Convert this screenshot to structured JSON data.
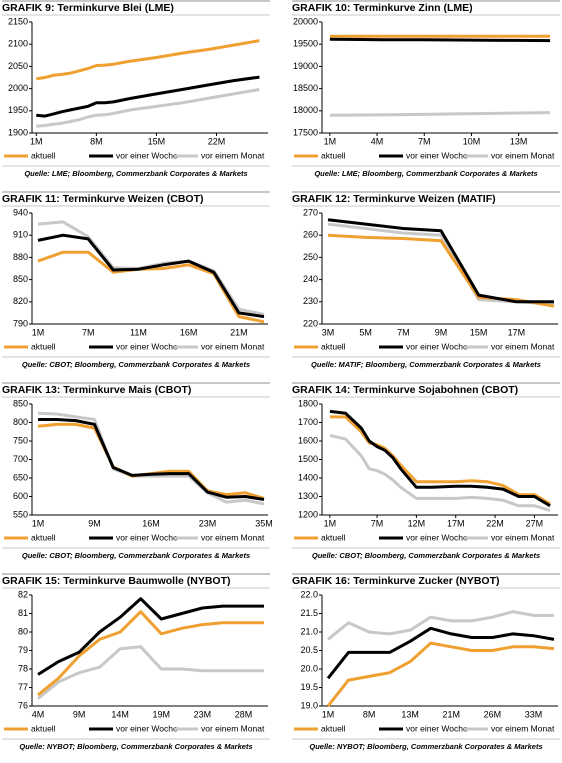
{
  "chart_data": [
    {
      "type": "line",
      "title": "GRAFIK 9: Terminkurve Blei (LME)",
      "source": "Quelle: LME; Bloomberg, Commerzbank Corporates & Markets",
      "x": [
        1,
        2,
        3,
        4,
        5,
        6,
        7,
        8,
        9,
        10,
        12,
        15,
        18,
        21,
        24,
        27
      ],
      "xlim": [
        0.5,
        28
      ],
      "xticks": [
        {
          "value": 1,
          "label": "1M"
        },
        {
          "value": 8,
          "label": "8M"
        },
        {
          "value": 15,
          "label": "15M"
        },
        {
          "value": 22,
          "label": "22M"
        }
      ],
      "ylim": [
        1900,
        2150
      ],
      "yticks": [
        1900,
        1950,
        2000,
        2050,
        2100,
        2150
      ],
      "series": [
        {
          "name": "aktuell",
          "color": "#f0a030",
          "values": [
            2022,
            2025,
            2030,
            2032,
            2035,
            2040,
            2045,
            2052,
            2053,
            2055,
            2062,
            2070,
            2080,
            2088,
            2098,
            2108
          ]
        },
        {
          "name": "vor einer Woche",
          "color": "#000000",
          "values": [
            1940,
            1938,
            1943,
            1948,
            1952,
            1956,
            1960,
            1968,
            1968,
            1970,
            1978,
            1988,
            1998,
            2008,
            2018,
            2026
          ]
        },
        {
          "name": "vor einem Monat",
          "color": "#c8c8c8",
          "values": [
            1915,
            1917,
            1920,
            1922,
            1926,
            1930,
            1936,
            1940,
            1941,
            1944,
            1952,
            1960,
            1968,
            1978,
            1988,
            1998
          ]
        }
      ]
    },
    {
      "type": "line",
      "title": "GRAFIK 10: Terminkurve Zinn (LME)",
      "source": "Quelle: LME; Bloomberg, Commerzbank Corporates & Markets",
      "x": [
        1,
        3,
        5,
        7,
        9,
        11,
        13,
        15
      ],
      "xlim": [
        0.5,
        15.5
      ],
      "xticks": [
        {
          "value": 1,
          "label": "1M"
        },
        {
          "value": 4,
          "label": "4M"
        },
        {
          "value": 7,
          "label": "7M"
        },
        {
          "value": 10,
          "label": "10M"
        },
        {
          "value": 13,
          "label": "13M"
        }
      ],
      "ylim": [
        17500,
        20000
      ],
      "yticks": [
        17500,
        18000,
        18500,
        19000,
        19500,
        20000
      ],
      "series": [
        {
          "name": "aktuell",
          "color": "#f0a030",
          "values": [
            19680,
            19680,
            19680,
            19680,
            19680,
            19680,
            19680,
            19680
          ]
        },
        {
          "name": "vor einer Woche",
          "color": "#000000",
          "values": [
            19610,
            19605,
            19600,
            19598,
            19595,
            19590,
            19585,
            19580
          ]
        },
        {
          "name": "vor einem Monat",
          "color": "#c8c8c8",
          "values": [
            17900,
            17905,
            17910,
            17920,
            17930,
            17940,
            17950,
            17960
          ]
        }
      ]
    },
    {
      "type": "line",
      "title": "GRAFIK 11: Terminkurve Weizen (CBOT)",
      "source": "Quelle: CBOT; Bloomberg, Commerzbank Corporates & Markets",
      "categories": [
        "1M",
        null,
        "7M",
        null,
        "11M",
        null,
        "16M",
        null,
        "21M",
        null
      ],
      "ylim": [
        790,
        940
      ],
      "yticks": [
        790,
        820,
        850,
        880,
        910,
        940
      ],
      "series": [
        {
          "name": "aktuell",
          "color": "#f0a030",
          "values": [
            875,
            887,
            887,
            860,
            864,
            865,
            870,
            858,
            800,
            793
          ]
        },
        {
          "name": "vor einer Woche",
          "color": "#000000",
          "values": [
            903,
            910,
            905,
            863,
            864,
            870,
            875,
            860,
            805,
            800
          ]
        },
        {
          "name": "vor einem Monat",
          "color": "#c8c8c8",
          "values": [
            925,
            928,
            908,
            866,
            865,
            872,
            875,
            862,
            810,
            803
          ]
        }
      ]
    },
    {
      "type": "line",
      "title": "GRAFIK 12: Terminkurve Weizen (MATIF)",
      "source": "Quelle: MATIF; Bloomberg, Commerzbank Corporates & Markets",
      "categories": [
        "3M",
        "5M",
        "7M",
        "9M",
        "15M",
        "17M",
        null
      ],
      "ylim": [
        220,
        270
      ],
      "yticks": [
        220,
        230,
        240,
        250,
        260,
        270
      ],
      "series": [
        {
          "name": "aktuell",
          "color": "#f0a030",
          "values": [
            260,
            259,
            258.5,
            257.5,
            232,
            231,
            228
          ]
        },
        {
          "name": "vor einer Woche",
          "color": "#000000",
          "values": [
            267,
            265,
            263,
            262,
            233,
            230,
            230
          ]
        },
        {
          "name": "vor einem Monat",
          "color": "#c8c8c8",
          "values": [
            265,
            263,
            261,
            260,
            231,
            230,
            229
          ]
        }
      ]
    },
    {
      "type": "line",
      "title": "GRAFIK 13:  Terminkurve Mais (CBOT)",
      "source": "Quelle: CBOT; Bloomberg, Commerzbank Corporates & Markets",
      "categories": [
        "1M",
        null,
        null,
        "9M",
        null,
        null,
        "16M",
        null,
        null,
        "23M",
        null,
        null,
        "35M"
      ],
      "ylim": [
        550,
        850
      ],
      "yticks": [
        550,
        600,
        650,
        700,
        750,
        800,
        850
      ],
      "series": [
        {
          "name": "aktuell",
          "color": "#f0a030",
          "values": [
            790,
            795,
            795,
            785,
            680,
            655,
            662,
            668,
            668,
            615,
            605,
            610,
            595
          ]
        },
        {
          "name": "vor einer Woche",
          "color": "#000000",
          "values": [
            808,
            808,
            805,
            795,
            678,
            657,
            660,
            662,
            662,
            612,
            598,
            600,
            592
          ]
        },
        {
          "name": "vor einem Monat",
          "color": "#c8c8c8",
          "values": [
            825,
            823,
            815,
            808,
            675,
            655,
            655,
            655,
            655,
            610,
            585,
            590,
            580
          ]
        }
      ]
    },
    {
      "type": "line",
      "title": "GRAFIK 14: Terminkurve Sojabohnen (CBOT)",
      "source": "Quelle: CBOT; Bloomberg, Commerzbank Corporates & Markets",
      "x": [
        1,
        3,
        5,
        6,
        7,
        8,
        9,
        10,
        12,
        14,
        17,
        19,
        21,
        23,
        25,
        27,
        29
      ],
      "xlim": [
        0,
        30
      ],
      "xticks": [
        {
          "value": 1,
          "label": "1M"
        },
        {
          "value": 7,
          "label": "7M"
        },
        {
          "value": 12,
          "label": "12M"
        },
        {
          "value": 17,
          "label": "17M"
        },
        {
          "value": 22,
          "label": "22M"
        },
        {
          "value": 27,
          "label": "27M"
        }
      ],
      "ylim": [
        1200,
        1800
      ],
      "yticks": [
        1200,
        1300,
        1400,
        1500,
        1600,
        1700,
        1800
      ],
      "series": [
        {
          "name": "aktuell",
          "color": "#f0a030",
          "values": [
            1730,
            1730,
            1650,
            1590,
            1580,
            1560,
            1520,
            1470,
            1380,
            1380,
            1380,
            1385,
            1380,
            1360,
            1310,
            1310,
            1260
          ]
        },
        {
          "name": "vor einer Woche",
          "color": "#000000",
          "values": [
            1760,
            1750,
            1670,
            1600,
            1570,
            1550,
            1510,
            1450,
            1350,
            1350,
            1355,
            1355,
            1350,
            1340,
            1300,
            1300,
            1250
          ]
        },
        {
          "name": "vor einem Monat",
          "color": "#c8c8c8",
          "values": [
            1630,
            1610,
            1520,
            1450,
            1440,
            1420,
            1390,
            1350,
            1290,
            1290,
            1290,
            1295,
            1290,
            1280,
            1250,
            1250,
            1225
          ]
        }
      ]
    },
    {
      "type": "line",
      "title": "GRAFIK 15: Terminkurve Baumwolle (NYBOT)",
      "source": "Quelle: NYBOT; Bloomberg, Commerzbank Corporates & Markets",
      "categories": [
        "4M",
        null,
        "9M",
        null,
        "14M",
        null,
        "19M",
        null,
        "23M",
        null,
        "28M",
        null
      ],
      "ylim": [
        76,
        82
      ],
      "yticks": [
        76,
        77,
        78,
        79,
        80,
        81,
        82
      ],
      "series": [
        {
          "name": "aktuell",
          "color": "#f0a030",
          "values": [
            76.6,
            77.5,
            78.7,
            79.6,
            80.0,
            81.1,
            79.9,
            80.2,
            80.4,
            80.5,
            80.5,
            80.5
          ]
        },
        {
          "name": "vor einer Woche",
          "color": "#000000",
          "values": [
            77.7,
            78.4,
            78.9,
            80.0,
            80.8,
            81.8,
            80.7,
            81.0,
            81.3,
            81.4,
            81.4,
            81.4
          ]
        },
        {
          "name": "vor einem Monat",
          "color": "#c8c8c8",
          "values": [
            76.4,
            77.3,
            77.8,
            78.1,
            79.1,
            79.2,
            78.0,
            78.0,
            77.9,
            77.9,
            77.9,
            77.9
          ]
        }
      ]
    },
    {
      "type": "line",
      "title": "GRAFIK 16: Terminkurve Zucker (NYBOT)",
      "source": "Quelle: NYBOT; Bloomberg, Commerzbank Corporates & Markets",
      "categories": [
        "1M",
        null,
        "8M",
        null,
        "13M",
        null,
        "21M",
        null,
        "26M",
        null,
        "33M",
        null
      ],
      "ylim": [
        19,
        22
      ],
      "yticks": [
        {
          "value": 19,
          "label": "19.0"
        },
        19.5,
        {
          "value": 20,
          "label": "20.0"
        },
        20.5,
        {
          "value": 21,
          "label": "21.0"
        },
        21.5,
        {
          "value": 22,
          "label": "22.0"
        }
      ],
      "series": [
        {
          "name": "aktuell",
          "color": "#f0a030",
          "values": [
            19.0,
            19.7,
            19.8,
            19.9,
            20.2,
            20.7,
            20.6,
            20.5,
            20.5,
            20.6,
            20.6,
            20.55
          ]
        },
        {
          "name": "vor einer Woche",
          "color": "#000000",
          "values": [
            19.75,
            20.45,
            20.45,
            20.45,
            20.75,
            21.1,
            20.95,
            20.85,
            20.85,
            20.95,
            20.9,
            20.8
          ]
        },
        {
          "name": "vor einem Monat",
          "color": "#c8c8c8",
          "values": [
            20.8,
            21.25,
            21.0,
            20.95,
            21.05,
            21.4,
            21.3,
            21.3,
            21.4,
            21.55,
            21.45,
            21.45
          ]
        }
      ]
    }
  ]
}
